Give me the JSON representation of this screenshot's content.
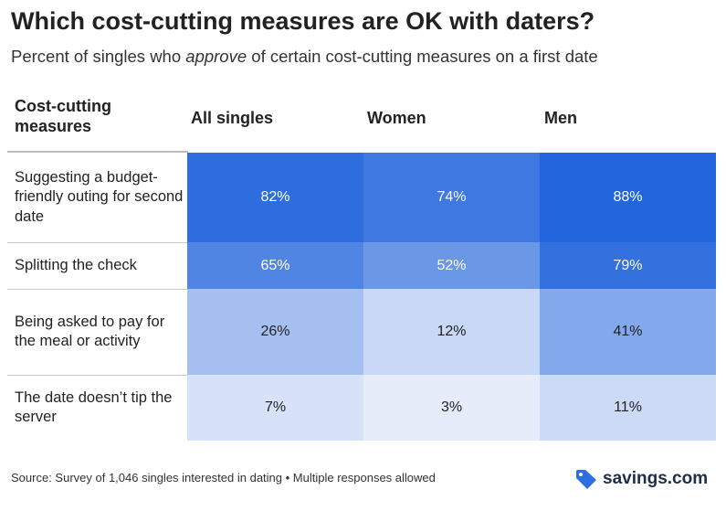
{
  "title": "Which cost-cutting measures are OK with daters?",
  "subtitle": {
    "before": "Percent of singles who ",
    "emphasis": "approve",
    "after": " of certain cost-cutting measures on a first date"
  },
  "chart_data": {
    "type": "table",
    "columns": [
      "Cost-cutting measures",
      "All singles",
      "Women",
      "Men"
    ],
    "rows": [
      {
        "label": "Suggesting a budget-friendly outing for second date",
        "values": [
          82,
          74,
          88
        ],
        "display": [
          "82%",
          "74%",
          "88%"
        ]
      },
      {
        "label": "Splitting the check",
        "values": [
          65,
          52,
          79
        ],
        "display": [
          "65%",
          "52%",
          "79%"
        ]
      },
      {
        "label": "Being asked to pay for the meal or activity",
        "values": [
          26,
          12,
          41
        ],
        "display": [
          "26%",
          "12%",
          "41%"
        ]
      },
      {
        "label": "The date doesn’t tip the server",
        "values": [
          7,
          3,
          11
        ],
        "display": [
          "7%",
          "3%",
          "11%"
        ]
      }
    ],
    "unit": "%"
  },
  "colors": {
    "heat_high": "#2265dc",
    "heat_low": "#e6ecfa",
    "text_dark": "#222222",
    "text_light": "#ffffff"
  },
  "footer": {
    "source": "Source: Survey of 1,046 singles interested in dating • Multiple responses allowed"
  },
  "brand": {
    "name": "savings.com",
    "icon": "tag-icon"
  }
}
